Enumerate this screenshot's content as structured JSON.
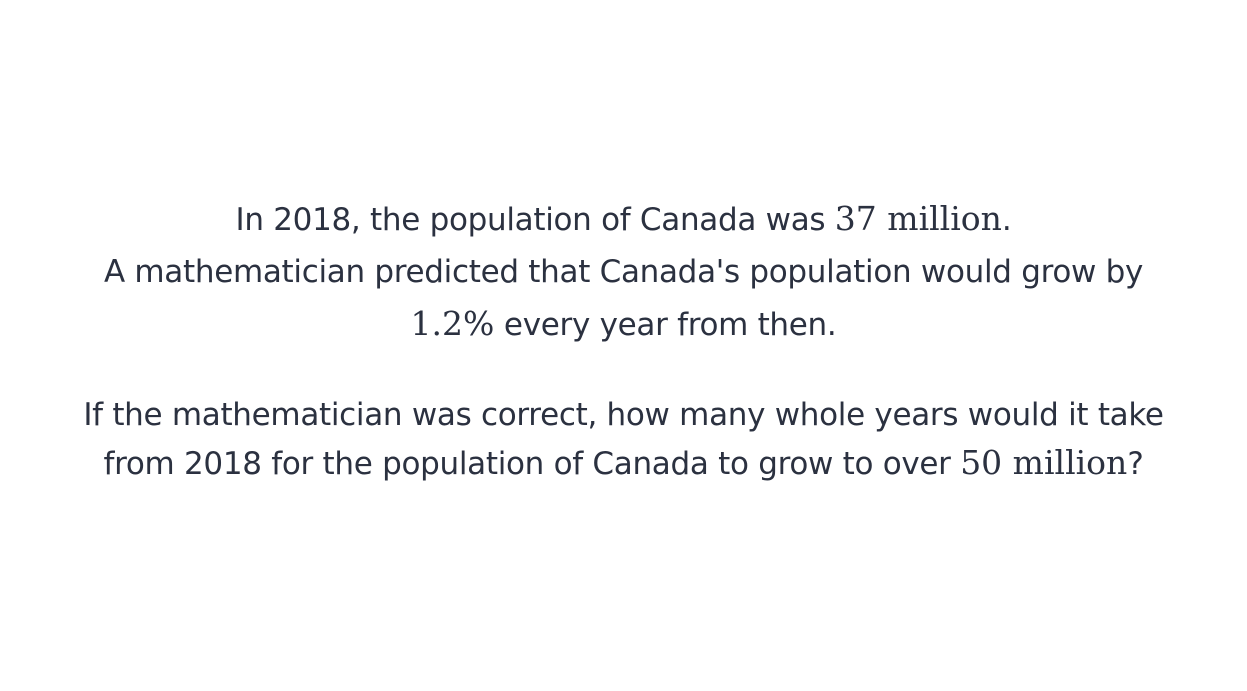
{
  "problem": {
    "p1": {
      "l1_a": "In 2018, the population of Canada was ",
      "l1_math": "37 million",
      "l1_b": ".",
      "l2": "A mathematician predicted that Canada's population would grow by",
      "l3_math": "1.2%",
      "l3_b": " every year from then."
    },
    "p2": {
      "l1": "If the mathematician was correct, how many whole years would it take",
      "l2_a": "from 2018 for the population of Canada to grow to over ",
      "l2_math": "50 million",
      "l2_b": "?"
    }
  }
}
